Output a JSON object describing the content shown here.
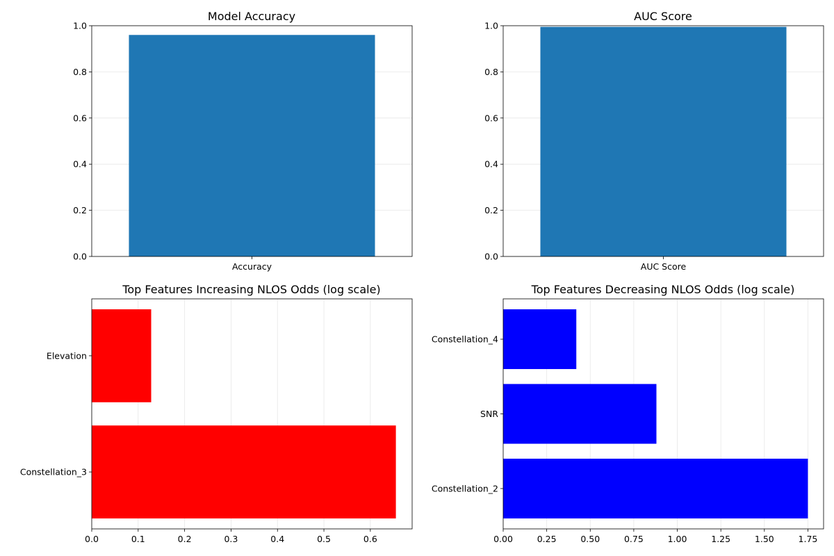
{
  "chart_data": [
    {
      "type": "bar",
      "orientation": "vertical",
      "title": "Model Accuracy",
      "categories": [
        "Accuracy"
      ],
      "values": [
        0.96
      ],
      "ylim": [
        0,
        1
      ],
      "yticks": [
        0,
        0.2,
        0.4,
        0.6,
        0.8,
        1.0
      ],
      "ytick_labels": [
        "0.0",
        "0.2",
        "0.4",
        "0.6",
        "0.8",
        "1.0"
      ],
      "grid": "y",
      "color": "#1f77b4"
    },
    {
      "type": "bar",
      "orientation": "vertical",
      "title": "AUC Score",
      "categories": [
        "AUC Score"
      ],
      "values": [
        0.995
      ],
      "ylim": [
        0,
        1
      ],
      "yticks": [
        0,
        0.2,
        0.4,
        0.6,
        0.8,
        1.0
      ],
      "ytick_labels": [
        "0.0",
        "0.2",
        "0.4",
        "0.6",
        "0.8",
        "1.0"
      ],
      "grid": "y",
      "color": "#1f77b4"
    },
    {
      "type": "bar",
      "orientation": "horizontal",
      "title": "Top Features Increasing NLOS Odds (log scale)",
      "categories": [
        "Constellation_3",
        "Elevation"
      ],
      "values": [
        0.655,
        0.128
      ],
      "xlim": [
        0,
        0.69
      ],
      "xticks": [
        0,
        0.1,
        0.2,
        0.3,
        0.4,
        0.5,
        0.6
      ],
      "xtick_labels": [
        "0.0",
        "0.1",
        "0.2",
        "0.3",
        "0.4",
        "0.5",
        "0.6"
      ],
      "grid": "x",
      "color": "#ff0000"
    },
    {
      "type": "bar",
      "orientation": "horizontal",
      "title": "Top Features Decreasing NLOS Odds (log scale)",
      "categories": [
        "Constellation_2",
        "SNR",
        "Constellation_4"
      ],
      "values": [
        1.75,
        0.88,
        0.42
      ],
      "xlim": [
        0,
        1.84
      ],
      "xticks": [
        0,
        0.25,
        0.5,
        0.75,
        1.0,
        1.25,
        1.5,
        1.75
      ],
      "xtick_labels": [
        "0.00",
        "0.25",
        "0.50",
        "0.75",
        "1.00",
        "1.25",
        "1.50",
        "1.75"
      ],
      "grid": "x",
      "color": "#0000ff"
    }
  ]
}
